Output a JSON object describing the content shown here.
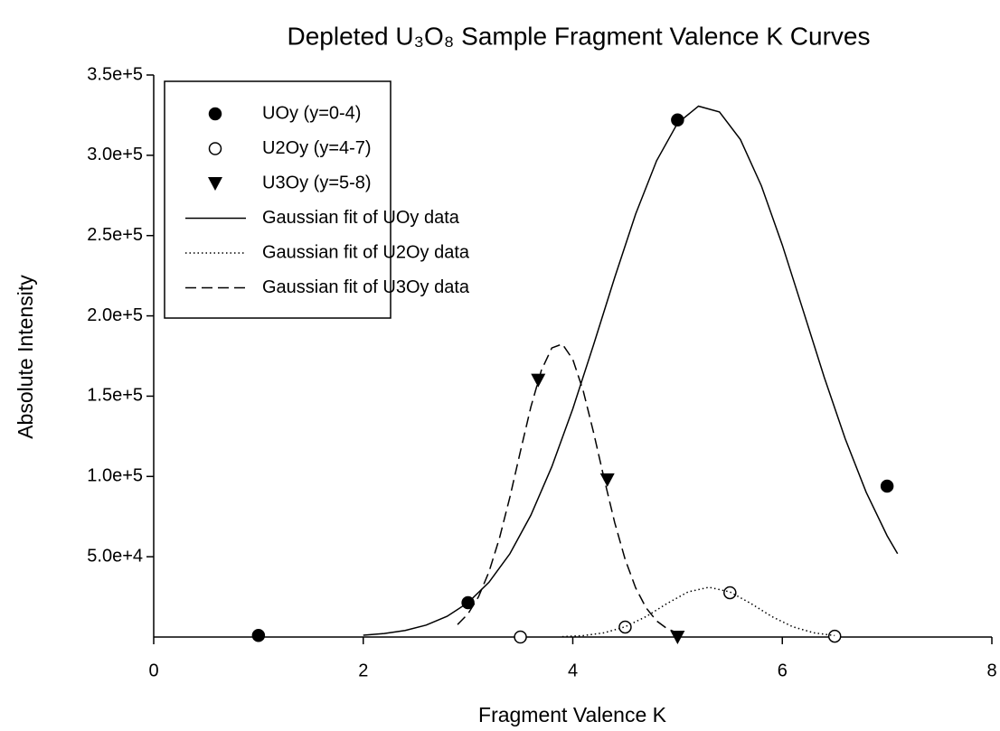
{
  "chart_data": {
    "type": "scatter",
    "title": "Depleted U₃O₈ Sample Fragment Valence K Curves",
    "x_label": "Fragment Valence K",
    "y_label": "Absolute Intensity",
    "xlim": [
      0,
      8
    ],
    "xticks": [
      0,
      2,
      4,
      6,
      8
    ],
    "ylim": [
      0,
      350000
    ],
    "yticks": [
      {
        "value": 50000,
        "label": "5.0e+4"
      },
      {
        "value": 100000,
        "label": "1.0e+5"
      },
      {
        "value": 150000,
        "label": "1.5e+5"
      },
      {
        "value": 200000,
        "label": "2.0e+5"
      },
      {
        "value": 250000,
        "label": "2.5e+5"
      },
      {
        "value": 300000,
        "label": "3.0e+5"
      },
      {
        "value": 350000,
        "label": "3.5e+5"
      }
    ],
    "legend": "upper left",
    "series": [
      {
        "name": "UOy (y=0-4)",
        "kind": "points",
        "marker": "circle-filled",
        "color": "#000000",
        "x": [
          1,
          3,
          5,
          7
        ],
        "values": [
          1000,
          21400,
          322000,
          94000
        ]
      },
      {
        "name": "U2Oy (y=4-7)",
        "kind": "points",
        "marker": "circle-open",
        "color": "#000000",
        "x": [
          3.5,
          4.5,
          5.5,
          6.5
        ],
        "values": [
          0,
          6200,
          27600,
          500
        ]
      },
      {
        "name": "U3Oy (y=5-8)",
        "kind": "points",
        "marker": "triangle-down",
        "color": "#000000",
        "x": [
          3.67,
          4.33,
          5
        ],
        "values": [
          160000,
          98000,
          0
        ]
      },
      {
        "name": "Gaussian fit of UOy data",
        "kind": "line",
        "dash": "solid",
        "color": "#000000",
        "x": [
          2.0,
          2.2,
          2.4,
          2.6,
          2.8,
          3.0,
          3.2,
          3.4,
          3.6,
          3.8,
          4.0,
          4.2,
          4.4,
          4.6,
          4.8,
          5.0,
          5.2,
          5.4,
          5.6,
          5.8,
          6.0,
          6.2,
          6.4,
          6.6,
          6.8,
          7.0,
          7.1
        ],
        "values": [
          1100,
          2200,
          4100,
          7400,
          12900,
          21400,
          34100,
          51900,
          75900,
          106100,
          142100,
          182300,
          223900,
          263400,
          296600,
          320000,
          330600,
          327000,
          309800,
          281000,
          244100,
          203100,
          161800,
          123500,
          90200,
          63100,
          51900
        ]
      },
      {
        "name": "Gaussian fit of U2Oy data",
        "kind": "line",
        "dash": "dotted",
        "color": "#000000",
        "x": [
          3.9,
          4.1,
          4.3,
          4.5,
          4.7,
          4.9,
          5.1,
          5.3,
          5.5,
          5.7,
          5.9,
          6.1,
          6.3,
          6.5
        ],
        "values": [
          245,
          886,
          2626,
          6383,
          12744,
          20885,
          28086,
          31000,
          28086,
          20885,
          12744,
          6383,
          2626,
          886
        ]
      },
      {
        "name": "Gaussian fit of U3Oy data",
        "kind": "line",
        "dash": "dashed",
        "color": "#000000",
        "x": [
          2.9,
          3.0,
          3.1,
          3.2,
          3.3,
          3.4,
          3.5,
          3.6,
          3.7,
          3.8,
          3.9,
          4.0,
          4.1,
          4.2,
          4.3,
          4.4,
          4.5,
          4.6,
          4.7,
          4.8,
          4.9,
          5.0
        ],
        "values": [
          7780,
          14440,
          25020,
          40590,
          61530,
          87200,
          115600,
          143290,
          166090,
          180020,
          182450,
          172920,
          153240,
          126980,
          98400,
          71300,
          48310,
          30620,
          18130,
          10050,
          5200,
          2520
        ]
      }
    ]
  }
}
